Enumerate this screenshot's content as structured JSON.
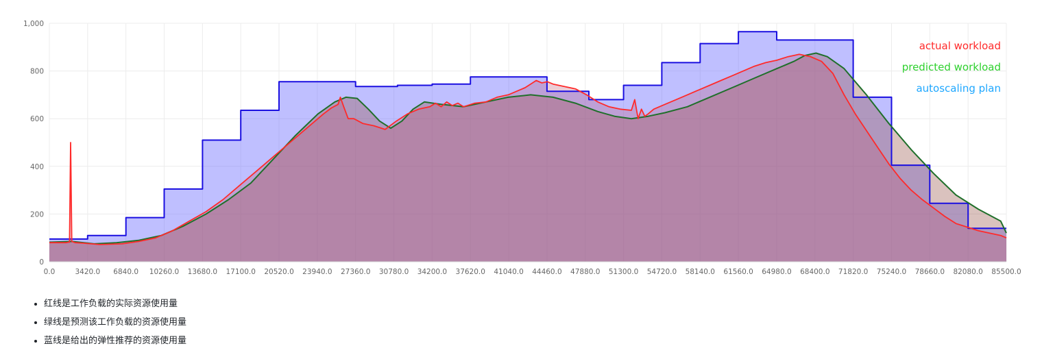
{
  "chart_data": {
    "type": "area",
    "title": "",
    "xlabel": "",
    "ylabel": "",
    "xlim": [
      0,
      85500
    ],
    "ylim": [
      0,
      1000
    ],
    "grid": true,
    "legend_position": "top-right",
    "x_ticks": [
      "0.0",
      "3420.0",
      "6840.0",
      "10260.0",
      "13680.0",
      "17100.0",
      "20520.0",
      "23940.0",
      "27360.0",
      "30780.0",
      "34200.0",
      "37620.0",
      "41040.0",
      "44460.0",
      "47880.0",
      "51300.0",
      "54720.0",
      "58140.0",
      "61560.0",
      "64980.0",
      "68400.0",
      "71820.0",
      "75240.0",
      "78660.0",
      "82080.0",
      "85500.0"
    ],
    "y_ticks": [
      "0",
      "200",
      "400",
      "600",
      "800",
      "1,000"
    ],
    "y_tick_values": [
      0,
      200,
      400,
      600,
      800,
      1000
    ],
    "series": [
      {
        "name": "actual workload",
        "color": "#ff2a2a",
        "x": [
          0,
          1500,
          1700,
          1800,
          1900,
          2000,
          2300,
          3000,
          4500,
          6500,
          8000,
          9500,
          11000,
          12500,
          14000,
          15500,
          17000,
          18500,
          20000,
          21500,
          23000,
          24500,
          25200,
          25600,
          25800,
          26000,
          26300,
          26700,
          27200,
          28000,
          29000,
          30000,
          31000,
          32000,
          33000,
          34000,
          34500,
          35000,
          35500,
          36000,
          36500,
          37000,
          38000,
          39000,
          40000,
          41000,
          42000,
          42500,
          43000,
          43500,
          44000,
          44500,
          45000,
          45500,
          46000,
          47000,
          48000,
          49000,
          50000,
          51000,
          52000,
          52300,
          52600,
          52900,
          53200,
          53500,
          54000,
          55000,
          56000,
          57000,
          58000,
          59000,
          60000,
          61000,
          62000,
          63000,
          64000,
          65000,
          66000,
          66500,
          67000,
          68000,
          69000,
          70000,
          71000,
          72000,
          73000,
          74000,
          75000,
          76000,
          77000,
          78000,
          79000,
          80000,
          81000,
          82000,
          83000,
          84000,
          85000,
          85500
        ],
        "values": [
          80,
          80,
          82,
          82,
          500,
          85,
          80,
          78,
          72,
          75,
          85,
          100,
          130,
          170,
          210,
          260,
          320,
          380,
          440,
          500,
          560,
          620,
          645,
          655,
          660,
          690,
          650,
          600,
          600,
          580,
          570,
          555,
          590,
          620,
          640,
          650,
          665,
          650,
          670,
          655,
          665,
          650,
          665,
          670,
          690,
          700,
          720,
          730,
          745,
          760,
          750,
          755,
          745,
          740,
          735,
          725,
          700,
          670,
          650,
          640,
          635,
          680,
          600,
          640,
          610,
          620,
          640,
          660,
          680,
          700,
          720,
          740,
          760,
          780,
          800,
          820,
          835,
          845,
          860,
          865,
          870,
          860,
          840,
          790,
          700,
          620,
          550,
          480,
          410,
          350,
          300,
          260,
          225,
          190,
          160,
          145,
          130,
          120,
          110,
          100
        ]
      },
      {
        "name": "predicted workload",
        "color": "#2ed12e",
        "x": [
          0,
          2000,
          4000,
          6000,
          8000,
          10000,
          12000,
          14000,
          16000,
          18000,
          20000,
          22000,
          24000,
          25500,
          26500,
          27500,
          28500,
          29500,
          30500,
          31500,
          32500,
          33500,
          35000,
          37000,
          39000,
          41000,
          43000,
          45000,
          47000,
          49000,
          50500,
          52000,
          53500,
          55000,
          57000,
          59000,
          61000,
          63000,
          65000,
          66500,
          67500,
          68500,
          69500,
          71000,
          73000,
          75000,
          77000,
          79000,
          81000,
          83000,
          85000,
          85500
        ],
        "values": [
          82,
          85,
          75,
          80,
          90,
          110,
          150,
          200,
          260,
          330,
          430,
          530,
          620,
          670,
          690,
          685,
          640,
          590,
          560,
          590,
          640,
          670,
          660,
          650,
          670,
          690,
          700,
          690,
          665,
          630,
          610,
          600,
          610,
          625,
          650,
          690,
          730,
          770,
          810,
          840,
          865,
          875,
          860,
          810,
          700,
          580,
          470,
          370,
          280,
          220,
          170,
          120
        ]
      },
      {
        "name": "autoscaling plan",
        "color": "#1ea7ff",
        "x": [
          0,
          3420,
          3420,
          6840,
          6840,
          10260,
          10260,
          13680,
          13680,
          17100,
          17100,
          20520,
          20520,
          23940,
          23940,
          27360,
          27360,
          31100,
          31100,
          34200,
          34200,
          37620,
          37620,
          41040,
          41040,
          44460,
          44460,
          48200,
          48200,
          51300,
          51300,
          54720,
          54720,
          58140,
          58140,
          61560,
          61560,
          64980,
          64980,
          68400,
          68400,
          71820,
          71820,
          75240,
          75240,
          78660,
          78660,
          82080,
          82080,
          85500
        ],
        "values": [
          95,
          95,
          110,
          110,
          185,
          185,
          305,
          305,
          510,
          510,
          635,
          635,
          755,
          755,
          755,
          755,
          735,
          735,
          740,
          740,
          745,
          745,
          775,
          775,
          775,
          775,
          715,
          715,
          680,
          680,
          740,
          740,
          835,
          835,
          915,
          915,
          965,
          965,
          930,
          930,
          930,
          930,
          690,
          690,
          405,
          405,
          245,
          245,
          140,
          140
        ]
      }
    ]
  },
  "notes": [
    "红线是工作负载的实际资源使用量",
    "绿线是预测该工作负载的资源使用量",
    "蓝线是给出的弹性推荐的资源使用量"
  ]
}
